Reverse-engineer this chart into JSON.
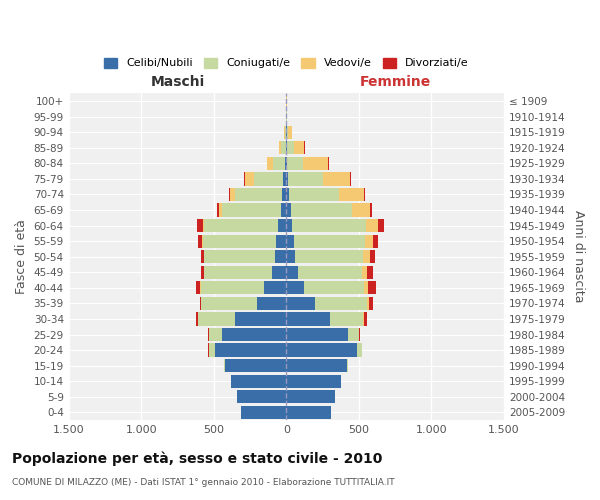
{
  "age_groups": [
    "0-4",
    "5-9",
    "10-14",
    "15-19",
    "20-24",
    "25-29",
    "30-34",
    "35-39",
    "40-44",
    "45-49",
    "50-54",
    "55-59",
    "60-64",
    "65-69",
    "70-74",
    "75-79",
    "80-84",
    "85-89",
    "90-94",
    "95-99",
    "100+"
  ],
  "birth_years": [
    "2005-2009",
    "2000-2004",
    "1995-1999",
    "1990-1994",
    "1985-1989",
    "1980-1984",
    "1975-1979",
    "1970-1974",
    "1965-1969",
    "1960-1964",
    "1955-1959",
    "1950-1954",
    "1945-1949",
    "1940-1944",
    "1935-1939",
    "1930-1934",
    "1925-1929",
    "1920-1924",
    "1915-1919",
    "1910-1914",
    "≤ 1909"
  ],
  "male": {
    "celibi": [
      310,
      340,
      380,
      420,
      490,
      440,
      355,
      205,
      155,
      100,
      80,
      70,
      60,
      40,
      30,
      20,
      10,
      5,
      2,
      0,
      0
    ],
    "coniugati": [
      0,
      2,
      3,
      8,
      45,
      95,
      255,
      380,
      435,
      465,
      485,
      505,
      505,
      405,
      325,
      205,
      80,
      30,
      10,
      2,
      0
    ],
    "vedovi": [
      0,
      0,
      0,
      0,
      0,
      1,
      2,
      3,
      5,
      5,
      5,
      5,
      10,
      20,
      30,
      60,
      40,
      15,
      5,
      0,
      0
    ],
    "divorziati": [
      0,
      0,
      0,
      0,
      2,
      5,
      10,
      10,
      30,
      15,
      20,
      30,
      40,
      10,
      10,
      10,
      5,
      2,
      0,
      0,
      0
    ]
  },
  "female": {
    "nubili": [
      305,
      335,
      375,
      415,
      490,
      425,
      300,
      200,
      120,
      80,
      60,
      50,
      40,
      30,
      20,
      15,
      8,
      5,
      2,
      0,
      0
    ],
    "coniugate": [
      0,
      2,
      3,
      8,
      30,
      75,
      230,
      355,
      415,
      440,
      470,
      490,
      510,
      420,
      340,
      235,
      110,
      45,
      12,
      2,
      0
    ],
    "vedove": [
      0,
      0,
      0,
      0,
      1,
      4,
      8,
      15,
      25,
      35,
      45,
      60,
      80,
      130,
      175,
      190,
      170,
      75,
      25,
      5,
      2
    ],
    "divorziate": [
      0,
      0,
      0,
      0,
      2,
      3,
      15,
      25,
      55,
      40,
      35,
      35,
      45,
      8,
      8,
      8,
      4,
      2,
      0,
      0,
      0
    ]
  },
  "colors": {
    "celibi": "#3a6ea8",
    "coniugati": "#c5d9a0",
    "vedovi": "#f5c872",
    "divorziati": "#cc2222"
  },
  "title": "Popolazione per età, sesso e stato civile - 2010",
  "subtitle": "COMUNE DI MILAZZO (ME) - Dati ISTAT 1° gennaio 2010 - Elaborazione TUTTITALIA.IT",
  "xlabel_left": "Maschi",
  "xlabel_right": "Femmine",
  "ylabel_left": "Fasce di età",
  "ylabel_right": "Anni di nascita",
  "xlim": 1500,
  "legend_labels": [
    "Celibi/Nubili",
    "Coniugati/e",
    "Vedovi/e",
    "Divorziati/e"
  ],
  "bg_color": "#f0f0f0",
  "bar_height": 0.85
}
